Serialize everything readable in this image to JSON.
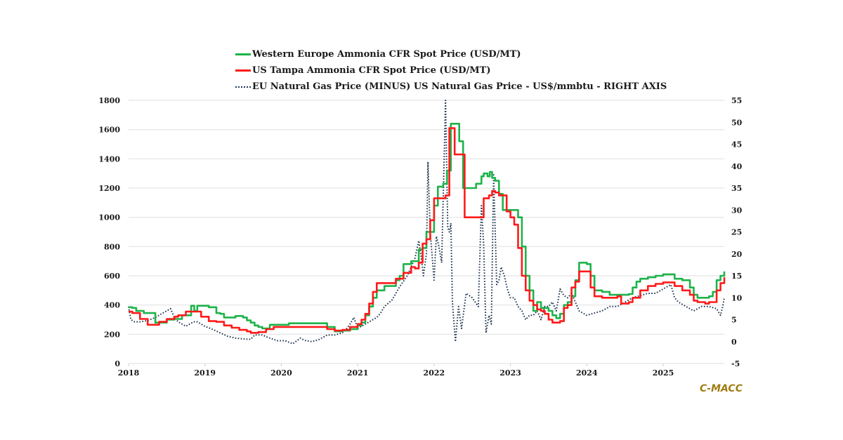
{
  "colors": {
    "western_europe": "#1db34a",
    "us_tampa": "#ff1a1a",
    "gas_spread": "#1f3550",
    "gridline": "#e3e3e3",
    "brand": "#a07c12"
  },
  "brand": "C-MACC",
  "chart_data": {
    "type": "line",
    "title": "",
    "xlabel": "",
    "ylabel": "",
    "xlim": [
      2018,
      2025.8
    ],
    "ylim": [
      0,
      1800
    ],
    "y2lim": [
      -5,
      55
    ],
    "grid": true,
    "legend_position": "top-center",
    "x_ticks": [
      "2018",
      "2019",
      "2020",
      "2021",
      "2022",
      "2023",
      "2024",
      "2025"
    ],
    "y_ticks": [
      "0",
      "200",
      "400",
      "600",
      "800",
      "1000",
      "1200",
      "1400",
      "1600",
      "1800"
    ],
    "y2_ticks": [
      "-5",
      "0",
      "5",
      "10",
      "15",
      "20",
      "25",
      "30",
      "35",
      "40",
      "45",
      "50",
      "55"
    ],
    "series": [
      {
        "name": "Western Europe Ammonia CFR Spot Price (USD/MT)",
        "axis": "left",
        "style": "solid",
        "step": true,
        "x": [
          2018.0,
          2018.05,
          2018.1,
          2018.2,
          2018.3,
          2018.35,
          2018.5,
          2018.6,
          2018.7,
          2018.78,
          2018.82,
          2018.86,
          2018.9,
          2019.05,
          2019.15,
          2019.2,
          2019.25,
          2019.4,
          2019.5,
          2019.55,
          2019.6,
          2019.65,
          2019.7,
          2019.75,
          2019.85,
          2019.95,
          2020.1,
          2020.3,
          2020.5,
          2020.6,
          2020.7,
          2020.8,
          2020.9,
          2021.0,
          2021.05,
          2021.1,
          2021.15,
          2021.2,
          2021.25,
          2021.35,
          2021.45,
          2021.5,
          2021.55,
          2021.6,
          2021.7,
          2021.75,
          2021.8,
          2021.85,
          2021.9,
          2022.0,
          2022.05,
          2022.12,
          2022.17,
          2022.22,
          2022.3,
          2022.33,
          2022.38,
          2022.55,
          2022.62,
          2022.65,
          2022.7,
          2022.73,
          2022.76,
          2022.8,
          2022.85,
          2022.9,
          2022.95,
          2023.1,
          2023.15,
          2023.2,
          2023.25,
          2023.3,
          2023.35,
          2023.4,
          2023.5,
          2023.55,
          2023.6,
          2023.65,
          2023.7,
          2023.75,
          2023.8,
          2023.85,
          2023.9,
          2024.0,
          2024.05,
          2024.1,
          2024.2,
          2024.3,
          2024.4,
          2024.5,
          2024.55,
          2024.6,
          2024.65,
          2024.7,
          2024.8,
          2024.9,
          2025.0,
          2025.1,
          2025.15,
          2025.25,
          2025.35,
          2025.4,
          2025.45,
          2025.55,
          2025.6,
          2025.65,
          2025.7,
          2025.75,
          2025.8
        ],
        "values": [
          385,
          380,
          360,
          345,
          345,
          280,
          300,
          305,
          330,
          330,
          395,
          360,
          395,
          385,
          345,
          340,
          315,
          325,
          315,
          295,
          280,
          260,
          250,
          240,
          265,
          265,
          275,
          275,
          275,
          250,
          220,
          225,
          235,
          260,
          280,
          330,
          390,
          450,
          500,
          530,
          530,
          570,
          600,
          680,
          700,
          700,
          780,
          790,
          900,
          1080,
          1210,
          1230,
          1320,
          1640,
          1640,
          1520,
          1200,
          1230,
          1280,
          1300,
          1280,
          1310,
          1270,
          1250,
          1160,
          1050,
          1050,
          1000,
          800,
          600,
          500,
          360,
          420,
          380,
          360,
          330,
          310,
          340,
          400,
          420,
          460,
          570,
          690,
          680,
          600,
          500,
          490,
          470,
          470,
          470,
          475,
          520,
          560,
          580,
          590,
          600,
          610,
          610,
          580,
          570,
          520,
          470,
          450,
          450,
          460,
          490,
          570,
          600,
          630
        ]
      },
      {
        "name": "US Tampa Ammonia CFR Spot Price (USD/MT)",
        "axis": "left",
        "style": "solid",
        "step": true,
        "x": [
          2018.0,
          2018.05,
          2018.15,
          2018.25,
          2018.3,
          2018.4,
          2018.5,
          2018.6,
          2018.65,
          2018.75,
          2018.85,
          2018.95,
          2019.05,
          2019.15,
          2019.25,
          2019.35,
          2019.45,
          2019.55,
          2019.6,
          2019.7,
          2019.8,
          2019.9,
          2019.95,
          2020.1,
          2020.3,
          2020.5,
          2020.6,
          2020.7,
          2020.8,
          2020.9,
          2021.0,
          2021.05,
          2021.1,
          2021.15,
          2021.2,
          2021.25,
          2021.35,
          2021.45,
          2021.5,
          2021.6,
          2021.7,
          2021.75,
          2021.8,
          2021.85,
          2021.9,
          2021.95,
          2022.0,
          2022.08,
          2022.15,
          2022.2,
          2022.23,
          2022.27,
          2022.35,
          2022.4,
          2022.65,
          2022.72,
          2022.76,
          2022.8,
          2022.85,
          2022.9,
          2022.95,
          2023.0,
          2023.05,
          2023.1,
          2023.15,
          2023.2,
          2023.25,
          2023.3,
          2023.35,
          2023.4,
          2023.45,
          2023.5,
          2023.55,
          2023.6,
          2023.65,
          2023.7,
          2023.75,
          2023.8,
          2023.85,
          2023.9,
          2024.0,
          2024.05,
          2024.1,
          2024.2,
          2024.3,
          2024.4,
          2024.45,
          2024.55,
          2024.6,
          2024.7,
          2024.8,
          2024.9,
          2025.0,
          2025.1,
          2025.15,
          2025.25,
          2025.35,
          2025.4,
          2025.45,
          2025.55,
          2025.6,
          2025.7,
          2025.75,
          2025.8
        ],
        "values": [
          355,
          345,
          305,
          265,
          265,
          285,
          305,
          320,
          330,
          355,
          355,
          320,
          290,
          285,
          260,
          245,
          230,
          220,
          210,
          215,
          235,
          250,
          250,
          250,
          250,
          250,
          235,
          225,
          230,
          250,
          270,
          300,
          340,
          410,
          490,
          550,
          550,
          550,
          580,
          620,
          660,
          650,
          690,
          820,
          850,
          980,
          1130,
          1130,
          1150,
          1610,
          1610,
          1430,
          1430,
          1000,
          1130,
          1150,
          1180,
          1170,
          1150,
          1150,
          1040,
          1000,
          950,
          790,
          600,
          500,
          430,
          400,
          370,
          360,
          340,
          300,
          280,
          280,
          290,
          380,
          400,
          520,
          560,
          630,
          630,
          520,
          460,
          450,
          450,
          460,
          410,
          420,
          450,
          500,
          530,
          545,
          555,
          555,
          530,
          500,
          470,
          430,
          420,
          410,
          420,
          500,
          550,
          590
        ]
      },
      {
        "name": "EU Natural Gas Price (MINUS) US Natural Gas Price - US$/mmbtu - RIGHT AXIS",
        "axis": "right",
        "style": "dotted",
        "step": false,
        "x": [
          2018.0,
          2018.03,
          2018.08,
          2018.15,
          2018.25,
          2018.35,
          2018.45,
          2018.55,
          2018.6,
          2018.65,
          2018.75,
          2018.85,
          2018.9,
          2019.0,
          2019.1,
          2019.2,
          2019.3,
          2019.4,
          2019.5,
          2019.6,
          2019.65,
          2019.75,
          2019.85,
          2019.95,
          2020.05,
          2020.15,
          2020.25,
          2020.3,
          2020.4,
          2020.5,
          2020.6,
          2020.7,
          2020.8,
          2020.85,
          2020.9,
          2020.95,
          2021.0,
          2021.05,
          2021.1,
          2021.2,
          2021.25,
          2021.3,
          2021.35,
          2021.45,
          2021.55,
          2021.65,
          2021.7,
          2021.75,
          2021.8,
          2021.83,
          2021.86,
          2021.9,
          2021.92,
          2021.95,
          2022.0,
          2022.03,
          2022.06,
          2022.1,
          2022.15,
          2022.18,
          2022.2,
          2022.22,
          2022.24,
          2022.28,
          2022.32,
          2022.36,
          2022.42,
          2022.5,
          2022.58,
          2022.62,
          2022.65,
          2022.68,
          2022.72,
          2022.75,
          2022.78,
          2022.82,
          2022.85,
          2022.88,
          2022.92,
          2022.96,
          2023.0,
          2023.05,
          2023.1,
          2023.15,
          2023.2,
          2023.25,
          2023.3,
          2023.35,
          2023.4,
          2023.45,
          2023.5,
          2023.55,
          2023.6,
          2023.65,
          2023.7,
          2023.75,
          2023.8,
          2023.85,
          2023.9,
          2024.0,
          2024.1,
          2024.2,
          2024.3,
          2024.4,
          2024.5,
          2024.6,
          2024.7,
          2024.8,
          2024.9,
          2025.0,
          2025.1,
          2025.15,
          2025.2,
          2025.3,
          2025.4,
          2025.5,
          2025.6,
          2025.7,
          2025.75,
          2025.78,
          2025.8
        ],
        "values": [
          8,
          5,
          4.5,
          4.5,
          4.8,
          5.5,
          6.5,
          7.5,
          5.5,
          4.5,
          3.5,
          4.5,
          4.5,
          3.5,
          2.8,
          2,
          1.2,
          0.8,
          0.6,
          0.5,
          1.5,
          1.5,
          0.8,
          0.2,
          0.2,
          -0.5,
          0.8,
          0.3,
          0,
          0.5,
          1.5,
          1.5,
          2,
          2.8,
          4,
          5.5,
          3,
          3.5,
          4,
          5,
          5.5,
          6.5,
          8,
          9.5,
          12.5,
          15,
          17,
          19,
          23,
          19.5,
          15,
          20,
          41,
          25,
          14,
          24,
          22,
          18,
          55,
          26,
          25,
          27,
          9,
          0,
          8,
          3,
          11,
          10,
          8,
          31,
          22,
          2,
          6,
          4,
          38,
          13,
          14,
          17,
          15,
          12,
          10,
          10,
          8,
          7,
          5,
          6,
          6,
          7,
          5,
          8,
          8,
          9,
          7,
          12,
          10.5,
          10,
          11,
          9,
          7,
          6,
          6.5,
          7,
          8,
          8,
          9,
          10,
          10.5,
          11,
          11,
          12,
          13,
          10,
          9,
          8,
          7,
          8,
          8,
          7.5,
          6,
          8,
          10
        ]
      }
    ]
  }
}
